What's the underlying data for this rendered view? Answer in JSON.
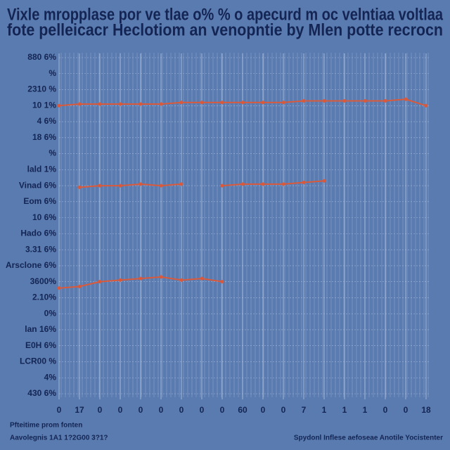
{
  "chart_data": {
    "type": "line",
    "title": "Vixle mropplase por ve tlae o% % o apecurd m oc velntiaa voltlaa",
    "subtitle": "fote pelleicacr Heclotiom an venopntie by Mlen potte recrocn",
    "notes": [
      "Pfteitime prom fonten",
      "Aavolegnis 1A1 1?2G00 3?1?"
    ],
    "source": "Spydonl Inflese aefoseae Anotile Yocistenter",
    "x": [
      0,
      1,
      2,
      3,
      4,
      5,
      6,
      7,
      8,
      9,
      10,
      11,
      12,
      13,
      14,
      15,
      16,
      17,
      18
    ],
    "xlim": [
      0,
      18
    ],
    "xticks": [
      0,
      {
        "value": 1,
        "label": "17"
      },
      {
        "value": 2,
        "label": "0"
      },
      {
        "value": 3,
        "label": "0"
      },
      {
        "value": 4,
        "label": "0"
      },
      {
        "value": 5,
        "label": "0"
      },
      {
        "value": 6,
        "label": "0"
      },
      {
        "value": 7,
        "label": "0"
      },
      {
        "value": 8,
        "label": "0"
      },
      {
        "value": 9,
        "label": "60"
      },
      {
        "value": 10,
        "label": "0"
      },
      {
        "value": 11,
        "label": "0"
      },
      {
        "value": 12,
        "label": "7"
      },
      {
        "value": 13,
        "label": "1"
      },
      {
        "value": 14,
        "label": "1"
      },
      {
        "value": 15,
        "label": "1"
      },
      {
        "value": 16,
        "label": "0"
      },
      {
        "value": 17,
        "label": "0"
      },
      18
    ],
    "ylim": [
      0,
      21
    ],
    "yticks": [
      {
        "value": 0,
        "label": "430 6%"
      },
      {
        "value": 1,
        "label": "4%"
      },
      {
        "value": 2,
        "label": "LCR00 %"
      },
      {
        "value": 3,
        "label": "E0H 6%"
      },
      {
        "value": 4,
        "label": "lan 16%"
      },
      {
        "value": 5,
        "label": "0%"
      },
      {
        "value": 6,
        "label": "2.10%"
      },
      {
        "value": 7,
        "label": "3600%"
      },
      {
        "value": 8,
        "label": "Arsclone 6%"
      },
      {
        "value": 9,
        "label": "3.31 6%"
      },
      {
        "value": 10,
        "label": "Hado 6%"
      },
      {
        "value": 11,
        "label": "10 6%"
      },
      {
        "value": 12,
        "label": "Eom 6%"
      },
      {
        "value": 13,
        "label": "Vinad 6%"
      },
      {
        "value": 14,
        "label": "lald 1%"
      },
      {
        "value": 15,
        "label": "%"
      },
      {
        "value": 16,
        "label": "18 6%"
      },
      {
        "value": 17,
        "label": "4 6%"
      },
      {
        "value": 18,
        "label": "10 1%"
      },
      {
        "value": 19,
        "label": "2310 %"
      },
      {
        "value": 20,
        "label": "%"
      },
      {
        "value": 21,
        "label": "880 6%"
      }
    ],
    "grid": true,
    "series": [
      {
        "color": "#d9593a",
        "values": [
          18.0,
          18.1,
          18.1,
          18.1,
          18.1,
          18.1,
          18.2,
          18.2,
          18.2,
          18.2,
          18.2,
          18.2,
          18.3,
          18.3,
          18.3,
          18.3,
          18.3,
          18.4,
          18.0
        ]
      },
      {
        "color": "#d9593a",
        "values": [
          null,
          12.9,
          13.0,
          13.0,
          13.1,
          13.0,
          13.1,
          null,
          13.0,
          13.1,
          13.1,
          13.1,
          13.2,
          13.3,
          null,
          null,
          null,
          null,
          null
        ]
      },
      {
        "color": "#d9593a",
        "values": [
          6.6,
          6.7,
          7.0,
          7.1,
          7.2,
          7.3,
          7.1,
          7.2,
          7.0,
          null,
          null,
          null,
          null,
          null,
          null,
          null,
          null,
          null,
          null
        ]
      }
    ]
  }
}
